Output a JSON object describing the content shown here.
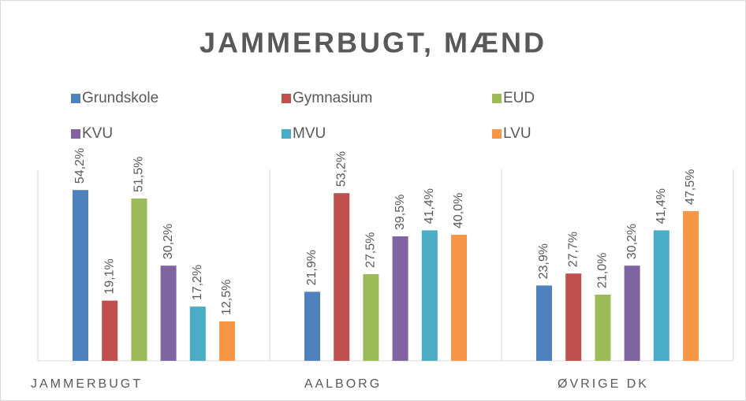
{
  "chart_data": {
    "type": "bar",
    "title": "JAMMERBUGT, MÆND",
    "categories": [
      "JAMMERBUGT",
      "AALBORG",
      "ØVRIGE DK"
    ],
    "series": [
      {
        "name": "Grundskole",
        "color": "#4f81bd",
        "values": [
          54.2,
          21.9,
          23.9
        ],
        "value_labels": [
          "54,2%",
          "21,9%",
          "23,9%"
        ]
      },
      {
        "name": "Gymnasium",
        "color": "#c0504d",
        "values": [
          19.1,
          53.2,
          27.7
        ],
        "value_labels": [
          "19,1%",
          "53,2%",
          "27,7%"
        ]
      },
      {
        "name": "EUD",
        "color": "#9bbb59",
        "values": [
          51.5,
          27.5,
          21.0
        ],
        "value_labels": [
          "51,5%",
          "27,5%",
          "21,0%"
        ]
      },
      {
        "name": "KVU",
        "color": "#8064a2",
        "values": [
          30.2,
          39.5,
          30.2
        ],
        "value_labels": [
          "30,2%",
          "39,5%",
          "30,2%"
        ]
      },
      {
        "name": "MVU",
        "color": "#4bacc6",
        "values": [
          17.2,
          41.4,
          41.4
        ],
        "value_labels": [
          "17,2%",
          "41,4%",
          "41,4%"
        ]
      },
      {
        "name": "LVU",
        "color": "#f79646",
        "values": [
          12.5,
          40.0,
          47.5
        ],
        "value_labels": [
          "12,5%",
          "40,0%",
          "47,5%"
        ]
      }
    ],
    "legend": "top"
  }
}
